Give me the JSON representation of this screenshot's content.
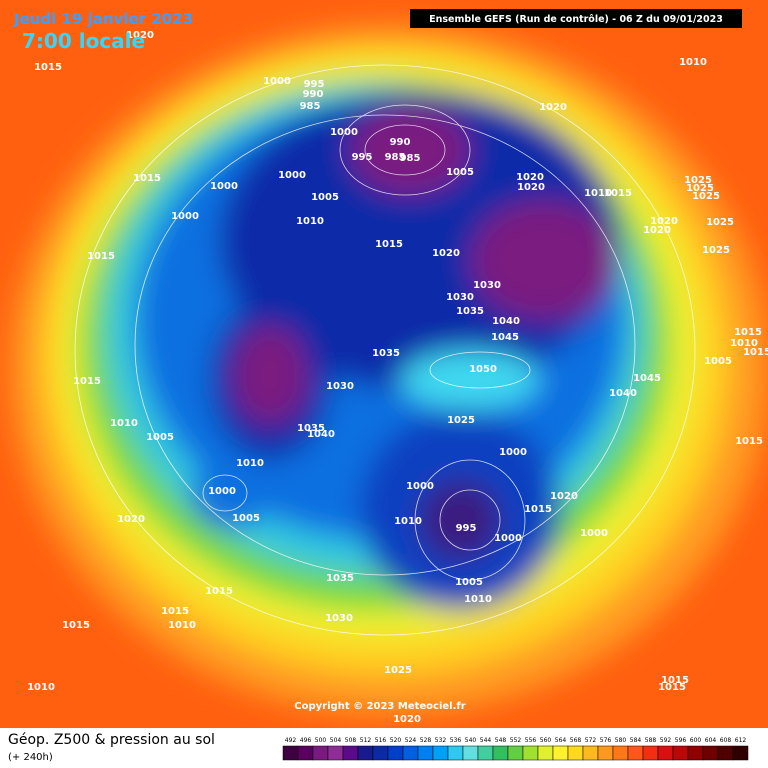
{
  "header": {
    "date": "Jeudi 19 janvier 2023",
    "time": "7:00 locale",
    "run": "Ensemble GEFS  (Run de contrôle)  -  06 Z du 09/01/2023",
    "copyright": "Copyright © 2023 Meteociel.fr"
  },
  "footer": {
    "title": "Géop. Z500 & pression au sol",
    "lead": "(+ 240h)"
  },
  "colorbar": {
    "values": [
      492,
      496,
      500,
      504,
      508,
      512,
      516,
      520,
      524,
      528,
      532,
      536,
      540,
      544,
      548,
      552,
      556,
      560,
      564,
      568,
      572,
      576,
      580,
      584,
      588,
      592,
      596,
      600,
      604,
      608,
      612
    ],
    "colors": [
      "#3d0040",
      "#5a005f",
      "#7a1a80",
      "#8f2d96",
      "#5a0a8a",
      "#1a1a90",
      "#0a2aa8",
      "#0040c8",
      "#0060e0",
      "#0080f0",
      "#00a0f8",
      "#30c8f0",
      "#60e0e0",
      "#40d0a0",
      "#30c060",
      "#60d040",
      "#a0e030",
      "#e0f030",
      "#fff030",
      "#ffd820",
      "#ffb820",
      "#ff9820",
      "#ff7818",
      "#ff5818",
      "#f03010",
      "#d81010",
      "#b80808",
      "#900000",
      "#700000",
      "#500000",
      "#300000"
    ]
  },
  "isobar_labels": [
    1020,
    1015,
    1000,
    995,
    990,
    985,
    1000,
    990,
    995,
    985,
    985,
    1005,
    1020,
    1010,
    1015,
    1000,
    1000,
    1005,
    1020,
    1020,
    1010,
    1015,
    1025,
    1025,
    1025,
    1000,
    1010,
    1015,
    1020,
    1020,
    1020,
    1025,
    1015,
    1025,
    1030,
    1030,
    1035,
    1040,
    1045,
    1015,
    1010,
    1015,
    1035,
    1050,
    1005,
    1045,
    1015,
    1030,
    1040,
    1010,
    1025,
    1035,
    1040,
    1005,
    1015,
    1000,
    1010,
    1000,
    1000,
    1020,
    1015,
    1005,
    1020,
    1010,
    995,
    1000,
    1000,
    1035,
    1005,
    1015,
    1010,
    1015,
    1030,
    1010,
    1015,
    1025,
    1015,
    1015,
    1010,
    1020
  ]
}
